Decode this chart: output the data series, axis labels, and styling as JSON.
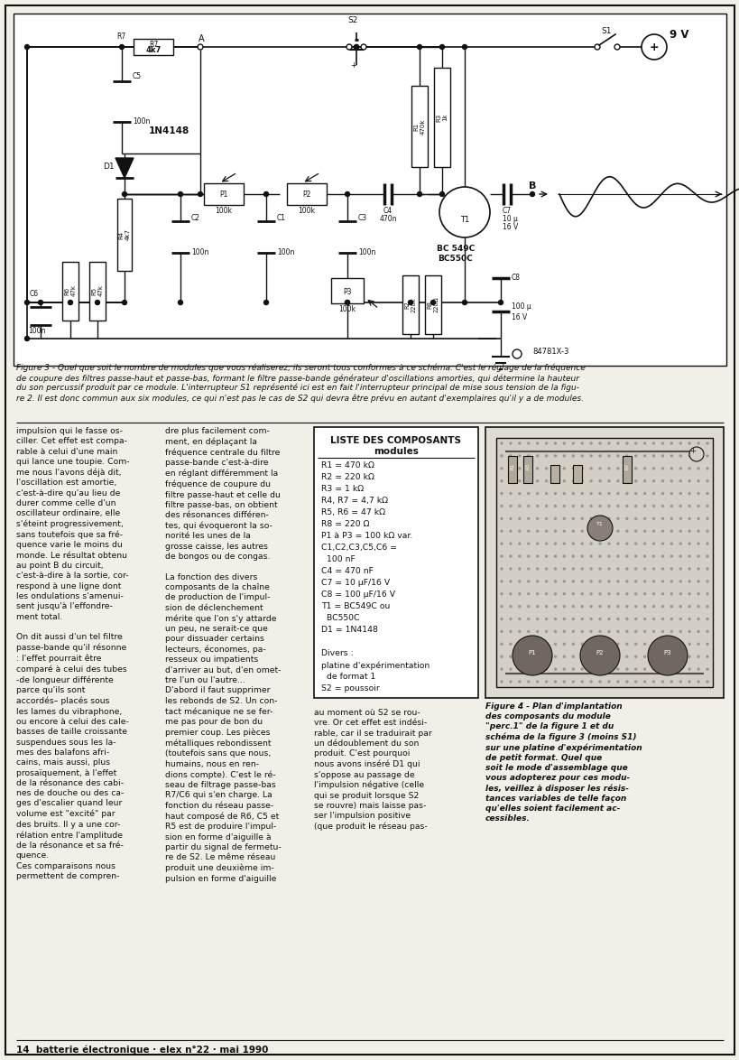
{
  "page_bg": "#f2efe9",
  "border_color": "#1a1a1a",
  "text_color": "#111111",
  "figure3_caption": "Figure 3 - Quel que soit le nombre de modules que vous réaliserez, ils seront tous conformes à ce schéma. C'est le réglage de la fréquence\nde coupure des filtres passe-haut et passe-bas, formant le filtre passe-bande générateur d'oscillations amorties, qui détermine la hauteur\ndu son percussif produit par ce module. L'interrupteur S1 représenté ici est en fait l'interrupteur principal de mise sous tension de la figu-\nre 2. Il est donc commun aux six modules, ce qui n'est pas le cas de S2 qui devra être prévu en autant d'exemplaires qu'il y a de modules.",
  "col1_text": "impulsion qui le fasse os-\nciller. Cet effet est compa-\nrable à celui d'une main\nqui lance une toupie. Com-\nme nous l'avons déjà dit,\nl'oscillation est amortie,\nc'est-à-dire qu'au lieu de\ndurer comme celle d'un\noscillateur ordinaire, elle\ns'éteint progressivement,\nsans toutefois que sa fré-\nquence varie le moins du\nmonde. Le résultat obtenu\nau point B du circuit,\nc'est-à-dire à la sortie, cor-\nrespond à une ligne dont\nles ondulations s'amenui-\nsent jusqu'à l'effondre-\nment total.\n\nOn dit aussi d'un tel filtre\npasse-bande qu'il résonne\n: l'effet pourrait être\ncomparé à celui des tubes\n-de longueur différente\nparce qu'ils sont\naccordés– placés sous\nles lames du vibraphone,\nou encore à celui des cale-\nbasses de taille croissante\nsuspendues sous les la-\nmes des balafons afri-\ncains, mais aussi, plus\nprosaïquement, à l'effet\nde la résonance des cabi-\nnes de douche ou des ca-\nges d'escalier quand leur\nvolume est \"excité\" par\ndes bruits. Il y a une cor-\nrélation entre l'amplitude\nde la résonance et sa fré-\nquence.\nCes comparaisons nous\npermettent de compren-",
  "col2_text": "dre plus facilement com-\nment, en déplaçant la\nfréquence centrale du filtre\npasse-bande c'est-à-dire\nen réglant différemment la\nfréquence de coupure du\nfiltre passe-haut et celle du\nfiltre passe-bas, on obtient\ndes résonances différen-\ntes, qui évoqueront la so-\nnorité les unes de la\ngrosse caisse, les autres\nde bongos ou de congas.\n\nLa fonction des divers\ncomposants de la chaîne\nde production de l'impul-\nsion de déclenchement\nmérite que l'on s'y attarde\nun peu, ne serait-ce que\npour dissuader certains\nlecteurs, économes, pa-\nresseux ou impatients\nd'arriver au but, d'en omet-\ntre l'un ou l'autre...\nD'abord il faut supprimer\nles rebonds de S2. Un con-\ntact mécanique ne se fer-\nme pas pour de bon du\npremier coup. Les pièces\nmétalliques rebondissent\n(toutefois sans que nous,\nhumains, nous en ren-\ndions compte). C'est le ré-\nseau de filtrage passe-bas\nR7/C6 qui s'en charge. La\nfonction du réseau passe-\nhaut composé de R6, C5 et\nR5 est de produire l'impul-\nsion en forme d'aiguille à\npartir du signal de fermetu-\nre de S2. Le même réseau\nproduit une deuxième im-\npulsion en forme d'aiguille",
  "col3_text": "au moment où S2 se rou-\nvre. Or cet effet est indési-\nrable, car il se traduirait par\nun dédoublement du son\nproduit. C'est pourquoi\nnous avons inséré D1 qui\ns'oppose au passage de\nl'impulsion négative (celle\nqui se produit lorsque S2\nse rouvre) mais laisse pas-\nser l'impulsion positive\n(que produit le réseau pas-",
  "liste_title": "LISTE DES COMPOSANTS",
  "liste_subtitle": "modules",
  "liste_items": [
    "R1 = 470 kΩ",
    "R2 = 220 kΩ",
    "R3 = 1 kΩ",
    "R4, R7 = 4,7 kΩ",
    "R5, R6 = 47 kΩ",
    "R8 = 220 Ω",
    "P1 à P3 = 100 kΩ var.",
    "C1,C2,C3,C5,C6 =",
    "  100 nF",
    "C4 = 470 nF",
    "C7 = 10 μF/16 V",
    "C8 = 100 μF/16 V",
    "T1 = BC549C ou",
    "  BC550C",
    "D1 = 1N4148",
    "",
    "Divers :",
    "platine d'expérimentation",
    "  de format 1",
    "S2 = poussoir"
  ],
  "col4_caption": "Figure 4 - Plan d'implantation\ndes composants du module\n\"perc.1\" de la figure 1 et du\nschéma de la figure 3 (moins S1)\nsur une platine d'expérimentation\nde petit format. Quel que\nsoit le mode d'assemblage que\nvous adopterez pour ces modu-\nles, veillez à disposer les résis-\ntances variables de telle façon\nqu'elles soient facilement ac-\ncessibles.",
  "footer_text": "14  batterie électronique · elex n°22 · mai 1990"
}
